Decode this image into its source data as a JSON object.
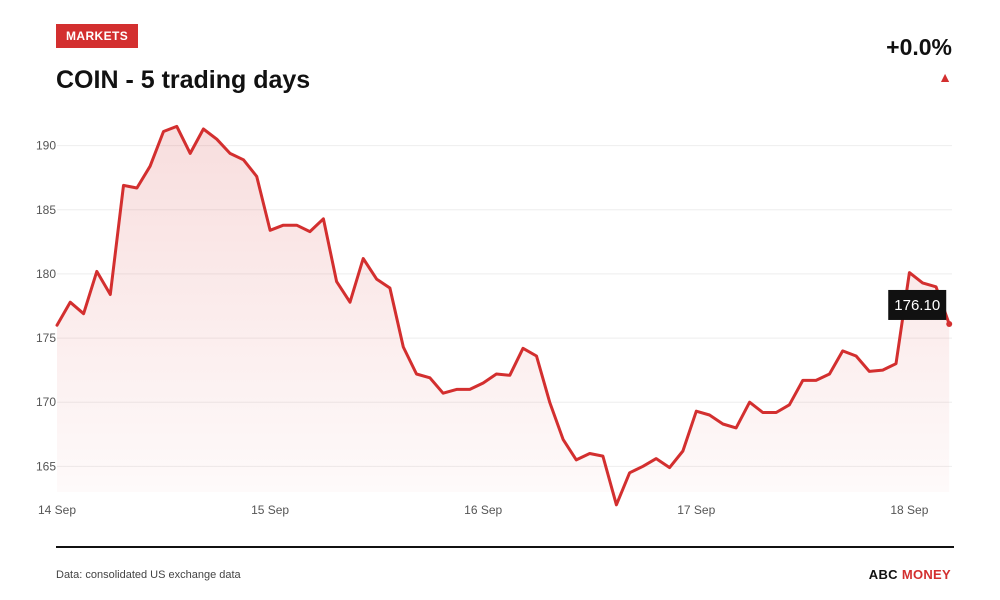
{
  "header": {
    "badge": "MARKETS",
    "title": "COIN - 5 trading days",
    "change": "+0.0%",
    "direction_icon": "triangle-up-icon"
  },
  "footer": {
    "source": "Data: consolidated US exchange data",
    "brand_part1": "ABC",
    "brand_part2": "MONEY"
  },
  "colors": {
    "accent": "#d32f2f",
    "text": "#111111",
    "grid": "#eeeeee"
  },
  "chart_data": {
    "type": "area",
    "grid": true,
    "ylim": [
      163,
      192
    ],
    "xlim": [
      0,
      4.2
    ],
    "yticks": [
      165,
      170,
      175,
      180,
      185,
      190
    ],
    "xticks": [
      {
        "x": 0,
        "label": "14 Sep"
      },
      {
        "x": 1,
        "label": "15 Sep"
      },
      {
        "x": 2,
        "label": "16 Sep"
      },
      {
        "x": 3,
        "label": "17 Sep"
      },
      {
        "x": 4,
        "label": "18 Sep"
      }
    ],
    "last_value_label": "176.10",
    "series": [
      {
        "x": [
          0,
          0.062,
          0.125,
          0.187,
          0.25,
          0.312,
          0.375,
          0.437,
          0.5,
          0.562,
          0.625,
          0.687,
          0.75,
          0.812,
          0.875,
          0.937,
          1.0,
          1.062,
          1.125,
          1.187,
          1.25,
          1.312,
          1.375,
          1.437,
          1.5,
          1.562,
          1.625,
          1.687,
          1.75,
          1.812,
          1.875,
          1.937,
          2.0,
          2.062,
          2.125,
          2.187,
          2.25,
          2.312,
          2.375,
          2.437,
          2.5,
          2.562,
          2.625,
          2.687,
          2.75,
          2.812,
          2.875,
          2.937,
          3.0,
          3.062,
          3.125,
          3.187,
          3.25,
          3.312,
          3.375,
          3.437,
          3.5,
          3.562,
          3.625,
          3.687,
          3.75,
          3.812,
          3.875,
          3.937,
          4.0,
          4.062,
          4.125,
          4.187
        ],
        "y": [
          176.0,
          177.8,
          176.9,
          180.2,
          178.4,
          186.9,
          186.7,
          188.4,
          191.1,
          191.5,
          189.4,
          191.3,
          190.5,
          189.4,
          188.9,
          187.6,
          183.4,
          183.8,
          183.8,
          183.3,
          184.3,
          179.4,
          177.8,
          181.2,
          179.6,
          178.9,
          174.3,
          172.2,
          171.9,
          170.7,
          171.0,
          171.0,
          171.5,
          172.2,
          172.1,
          174.2,
          173.6,
          170.0,
          167.1,
          165.5,
          166.0,
          165.8,
          162.0,
          164.5,
          165.0,
          165.6,
          164.9,
          166.2,
          169.3,
          169.0,
          168.3,
          168.0,
          170.0,
          169.2,
          169.2,
          169.8,
          171.7,
          171.7,
          172.2,
          174.0,
          173.6,
          172.4,
          172.5,
          173.0,
          180.1,
          179.3,
          179.0,
          176.1
        ]
      }
    ]
  }
}
